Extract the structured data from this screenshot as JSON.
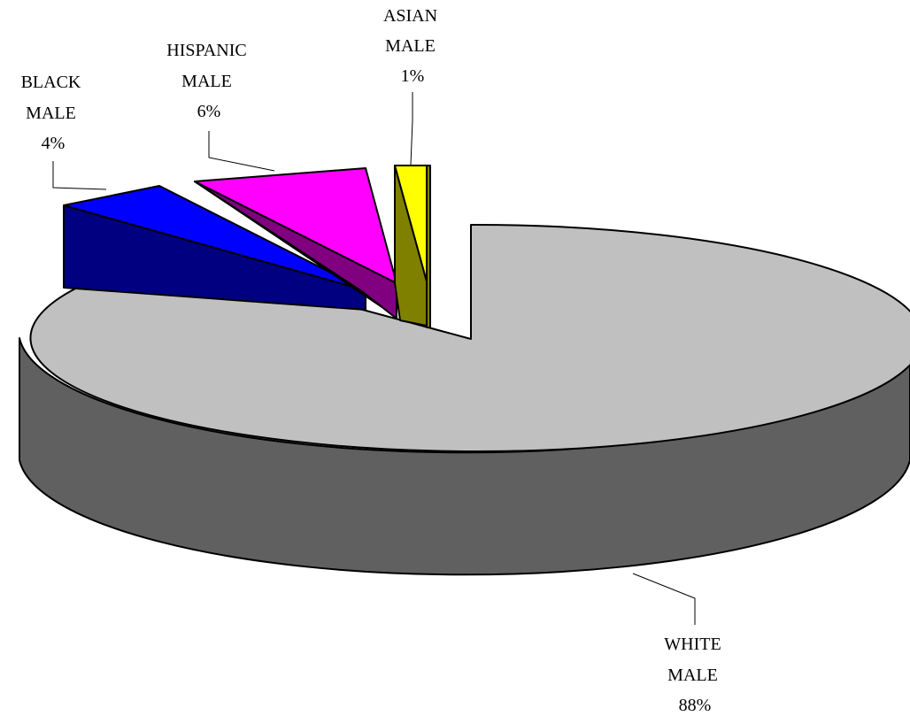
{
  "chart_data": {
    "type": "pie",
    "three_d": true,
    "exploded_slices": [
      "BLACK MALE",
      "HISPANIC MALE",
      "ASIAN MALE"
    ],
    "categories": [
      "WHITE MALE",
      "BLACK MALE",
      "HISPANIC MALE",
      "ASIAN MALE"
    ],
    "values": [
      88,
      4,
      6,
      1
    ],
    "unit": "%",
    "data_labels": [
      {
        "lines": [
          "WHITE",
          "MALE",
          "88%"
        ]
      },
      {
        "lines": [
          "BLACK",
          "MALE",
          "4%"
        ]
      },
      {
        "lines": [
          "HISPANIC",
          "MALE",
          "6%"
        ]
      },
      {
        "lines": [
          "ASIAN",
          "MALE",
          "1%"
        ]
      }
    ],
    "colors": {
      "WHITE MALE": {
        "top": "#c0c0c0",
        "side": "#606060",
        "inner": "#808080"
      },
      "BLACK MALE": {
        "top": "#0000ff",
        "side": "#000080",
        "inner": "#000066"
      },
      "HISPANIC MALE": {
        "top": "#ff00ff",
        "side": "#800080",
        "inner": "#660066"
      },
      "ASIAN MALE": {
        "top": "#ffff00",
        "side": "#808000",
        "inner": "#666600"
      }
    },
    "legend": "none",
    "grid": false
  }
}
